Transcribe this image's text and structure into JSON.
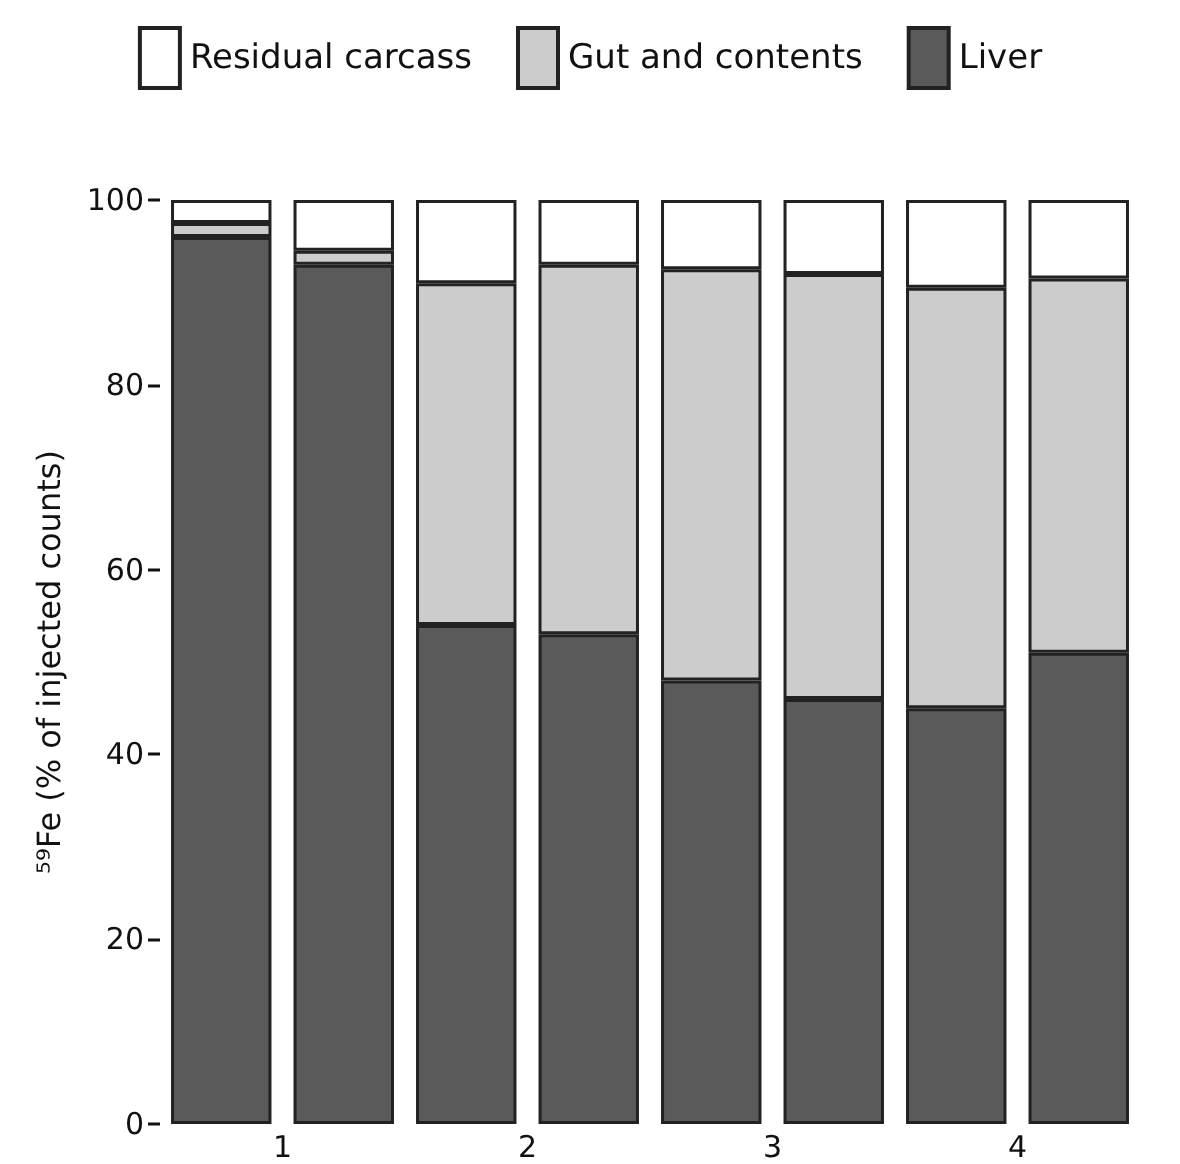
{
  "chart_data": {
    "type": "bar",
    "stacked": true,
    "ylabel": "⁵⁹Fe (% of injected counts)",
    "categories": [
      "1",
      null,
      "2",
      null,
      "3",
      null,
      "4",
      null
    ],
    "series": [
      {
        "name": "Liver",
        "color": "#5a5a5a",
        "values": [
          96,
          93,
          54,
          53,
          48,
          46,
          45,
          51
        ]
      },
      {
        "name": "Gut and contents",
        "color": "#cccccc",
        "values": [
          1.5,
          1.5,
          37,
          40,
          44.5,
          46,
          45.5,
          40.5
        ]
      },
      {
        "name": "Residual carcass",
        "color": "#ffffff",
        "values": [
          2.5,
          5.5,
          9,
          7,
          7.5,
          8,
          9.5,
          8.5
        ]
      }
    ],
    "ylim": [
      0,
      100
    ],
    "yticks": [
      0,
      20,
      40,
      60,
      80,
      100
    ],
    "grid": false,
    "legend": "top"
  }
}
